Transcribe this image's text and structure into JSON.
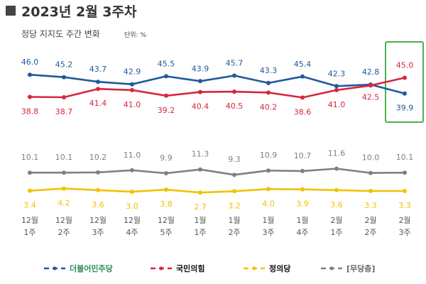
{
  "chart_data": {
    "type": "line",
    "title": "2023년 2월 3주차",
    "subtitle": "정당 지지도 주간 변화",
    "unit": "단위: %",
    "categories": [
      {
        "month": "12월",
        "week": "1주"
      },
      {
        "month": "12월",
        "week": "2주"
      },
      {
        "month": "12월",
        "week": "3주"
      },
      {
        "month": "12월",
        "week": "4주"
      },
      {
        "month": "12월",
        "week": "5주"
      },
      {
        "month": "1월",
        "week": "1주"
      },
      {
        "month": "1월",
        "week": "2주"
      },
      {
        "month": "1월",
        "week": "3주"
      },
      {
        "month": "1월",
        "week": "4주"
      },
      {
        "month": "2월",
        "week": "1주"
      },
      {
        "month": "2월",
        "week": "2주"
      },
      {
        "month": "2월",
        "week": "3주"
      }
    ],
    "series": [
      {
        "name": "더불어민주당",
        "color": "#1f5a99",
        "values": [
          46.0,
          45.2,
          43.7,
          42.9,
          45.5,
          43.9,
          45.7,
          43.3,
          45.4,
          42.3,
          42.8,
          39.9
        ],
        "labels": [
          "46.0",
          "45.2",
          "43.7",
          "42.9",
          "45.5",
          "43.9",
          "45.7",
          "43.3",
          "45.4",
          "42.3",
          "42.8",
          "39.9"
        ]
      },
      {
        "name": "국민의힘",
        "color": "#d7263d",
        "values": [
          38.8,
          38.7,
          41.4,
          41.0,
          39.2,
          40.4,
          40.5,
          40.2,
          38.6,
          41.0,
          42.5,
          45.0
        ],
        "labels": [
          "38.8",
          "38.7",
          "41.4",
          "41.0",
          "39.2",
          "40.4",
          "40.5",
          "40.2",
          "38.6",
          "41.0",
          "42.5",
          "45.0"
        ]
      },
      {
        "name": "[무당층]",
        "color": "#808080",
        "values": [
          10.1,
          10.1,
          10.2,
          11.0,
          9.9,
          11.3,
          9.3,
          10.9,
          10.7,
          11.6,
          10.0,
          10.1
        ],
        "labels": [
          "10.1",
          "10.1",
          "10.2",
          "11.0",
          "9.9",
          "11.3",
          "9.3",
          "10.9",
          "10.7",
          "11.6",
          "10.0",
          "10.1"
        ]
      },
      {
        "name": "정의당",
        "color": "#f2c200",
        "values": [
          3.4,
          4.2,
          3.6,
          3.0,
          3.8,
          2.7,
          3.2,
          4.0,
          3.9,
          3.6,
          3.3,
          3.3
        ],
        "labels": [
          "3.4",
          "4.2",
          "3.6",
          "3.0",
          "3.8",
          "2.7",
          "3.2",
          "4.0",
          "3.9",
          "3.6",
          "3.3",
          "3.3"
        ]
      }
    ],
    "highlight": {
      "category_index": 11,
      "color": "#4caf50"
    },
    "legend": {
      "placement": "bottom",
      "items": [
        {
          "label": "더불어민주당",
          "color": "#1f5a99",
          "text_color": "#2e8b57"
        },
        {
          "label": "국민의힘",
          "color": "#d7263d",
          "text_color": "#111111"
        },
        {
          "label": "정의당",
          "color": "#f2c200",
          "text_color": "#111111"
        },
        {
          "label": "[무당층]",
          "color": "#808080",
          "text_color": "#666666"
        }
      ]
    },
    "grid": false
  }
}
